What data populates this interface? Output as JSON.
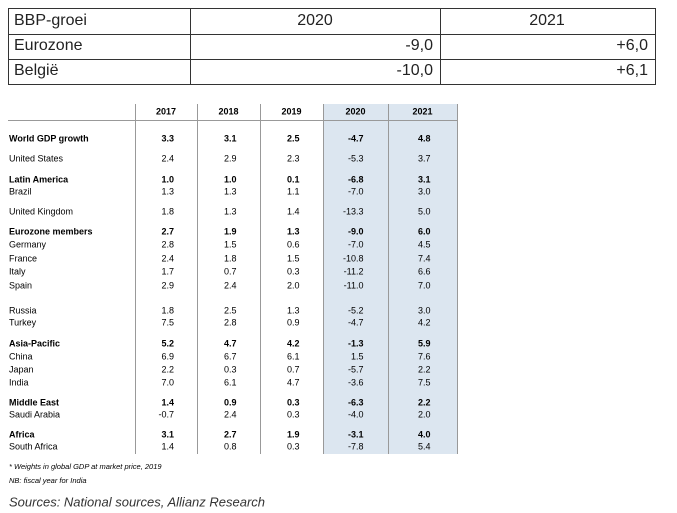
{
  "summary_table": {
    "header": [
      "BBP-groei",
      "2020",
      "2021"
    ],
    "rows": [
      [
        "Eurozone",
        "-9,0",
        "+6,0"
      ],
      [
        "België",
        "-10,0",
        "+6,1"
      ]
    ]
  },
  "detail_table": {
    "columns": [
      "2017",
      "2018",
      "2019",
      "2020",
      "2021"
    ],
    "rows": [
      {
        "label": "World GDP growth",
        "bold": true,
        "values": [
          "3.3",
          "3.1",
          "2.5",
          "-4.7",
          "4.8"
        ]
      },
      {
        "label": "United States",
        "values": [
          "2.4",
          "2.9",
          "2.3",
          "-5.3",
          "3.7"
        ]
      },
      {
        "label": "Latin America",
        "bold": true,
        "values": [
          "1.0",
          "1.0",
          "0.1",
          "-6.8",
          "3.1"
        ]
      },
      {
        "label": "Brazil",
        "values": [
          "1.3",
          "1.3",
          "1.1",
          "-7.0",
          "3.0"
        ]
      },
      {
        "label": "United Kingdom",
        "values": [
          "1.8",
          "1.3",
          "1.4",
          "-13.3",
          "5.0"
        ]
      },
      {
        "label": "Eurozone members",
        "bold": true,
        "values": [
          "2.7",
          "1.9",
          "1.3",
          "-9.0",
          "6.0"
        ]
      },
      {
        "label": "Germany",
        "values": [
          "2.8",
          "1.5",
          "0.6",
          "-7.0",
          "4.5"
        ]
      },
      {
        "label": "France",
        "values": [
          "2.4",
          "1.8",
          "1.5",
          "-10.8",
          "7.4"
        ]
      },
      {
        "label": "Italy",
        "values": [
          "1.7",
          "0.7",
          "0.3",
          "-11.2",
          "6.6"
        ]
      },
      {
        "label": "Spain",
        "values": [
          "2.9",
          "2.4",
          "2.0",
          "-11.0",
          "7.0"
        ]
      },
      {
        "label": "Russia",
        "values": [
          "1.8",
          "2.5",
          "1.3",
          "-5.2",
          "3.0"
        ]
      },
      {
        "label": "Turkey",
        "values": [
          "7.5",
          "2.8",
          "0.9",
          "-4.7",
          "4.2"
        ]
      },
      {
        "label": "Asia-Pacific",
        "bold": true,
        "values": [
          "5.2",
          "4.7",
          "4.2",
          "-1.3",
          "5.9"
        ]
      },
      {
        "label": "China",
        "values": [
          "6.9",
          "6.7",
          "6.1",
          "1.5",
          "7.6"
        ]
      },
      {
        "label": "Japan",
        "values": [
          "2.2",
          "0.3",
          "0.7",
          "-5.7",
          "2.2"
        ]
      },
      {
        "label": "India",
        "values": [
          "7.0",
          "6.1",
          "4.7",
          "-3.6",
          "7.5"
        ]
      },
      {
        "label": "Middle East",
        "bold": true,
        "values": [
          "1.4",
          "0.9",
          "0.3",
          "-6.3",
          "2.2"
        ]
      },
      {
        "label": "Saudi Arabia",
        "values": [
          "-0.7",
          "2.4",
          "0.3",
          "-4.0",
          "2.0"
        ]
      },
      {
        "label": "Africa",
        "bold": true,
        "values": [
          "3.1",
          "2.7",
          "1.9",
          "-3.1",
          "4.0"
        ]
      },
      {
        "label": "South Africa",
        "values": [
          "1.4",
          "0.8",
          "0.3",
          "-7.8",
          "5.4"
        ]
      }
    ],
    "footnotes": [
      "* Weights in global GDP at market price, 2019",
      "NB: fiscal year for India"
    ]
  },
  "source": "Sources: National sources, Allianz Research"
}
